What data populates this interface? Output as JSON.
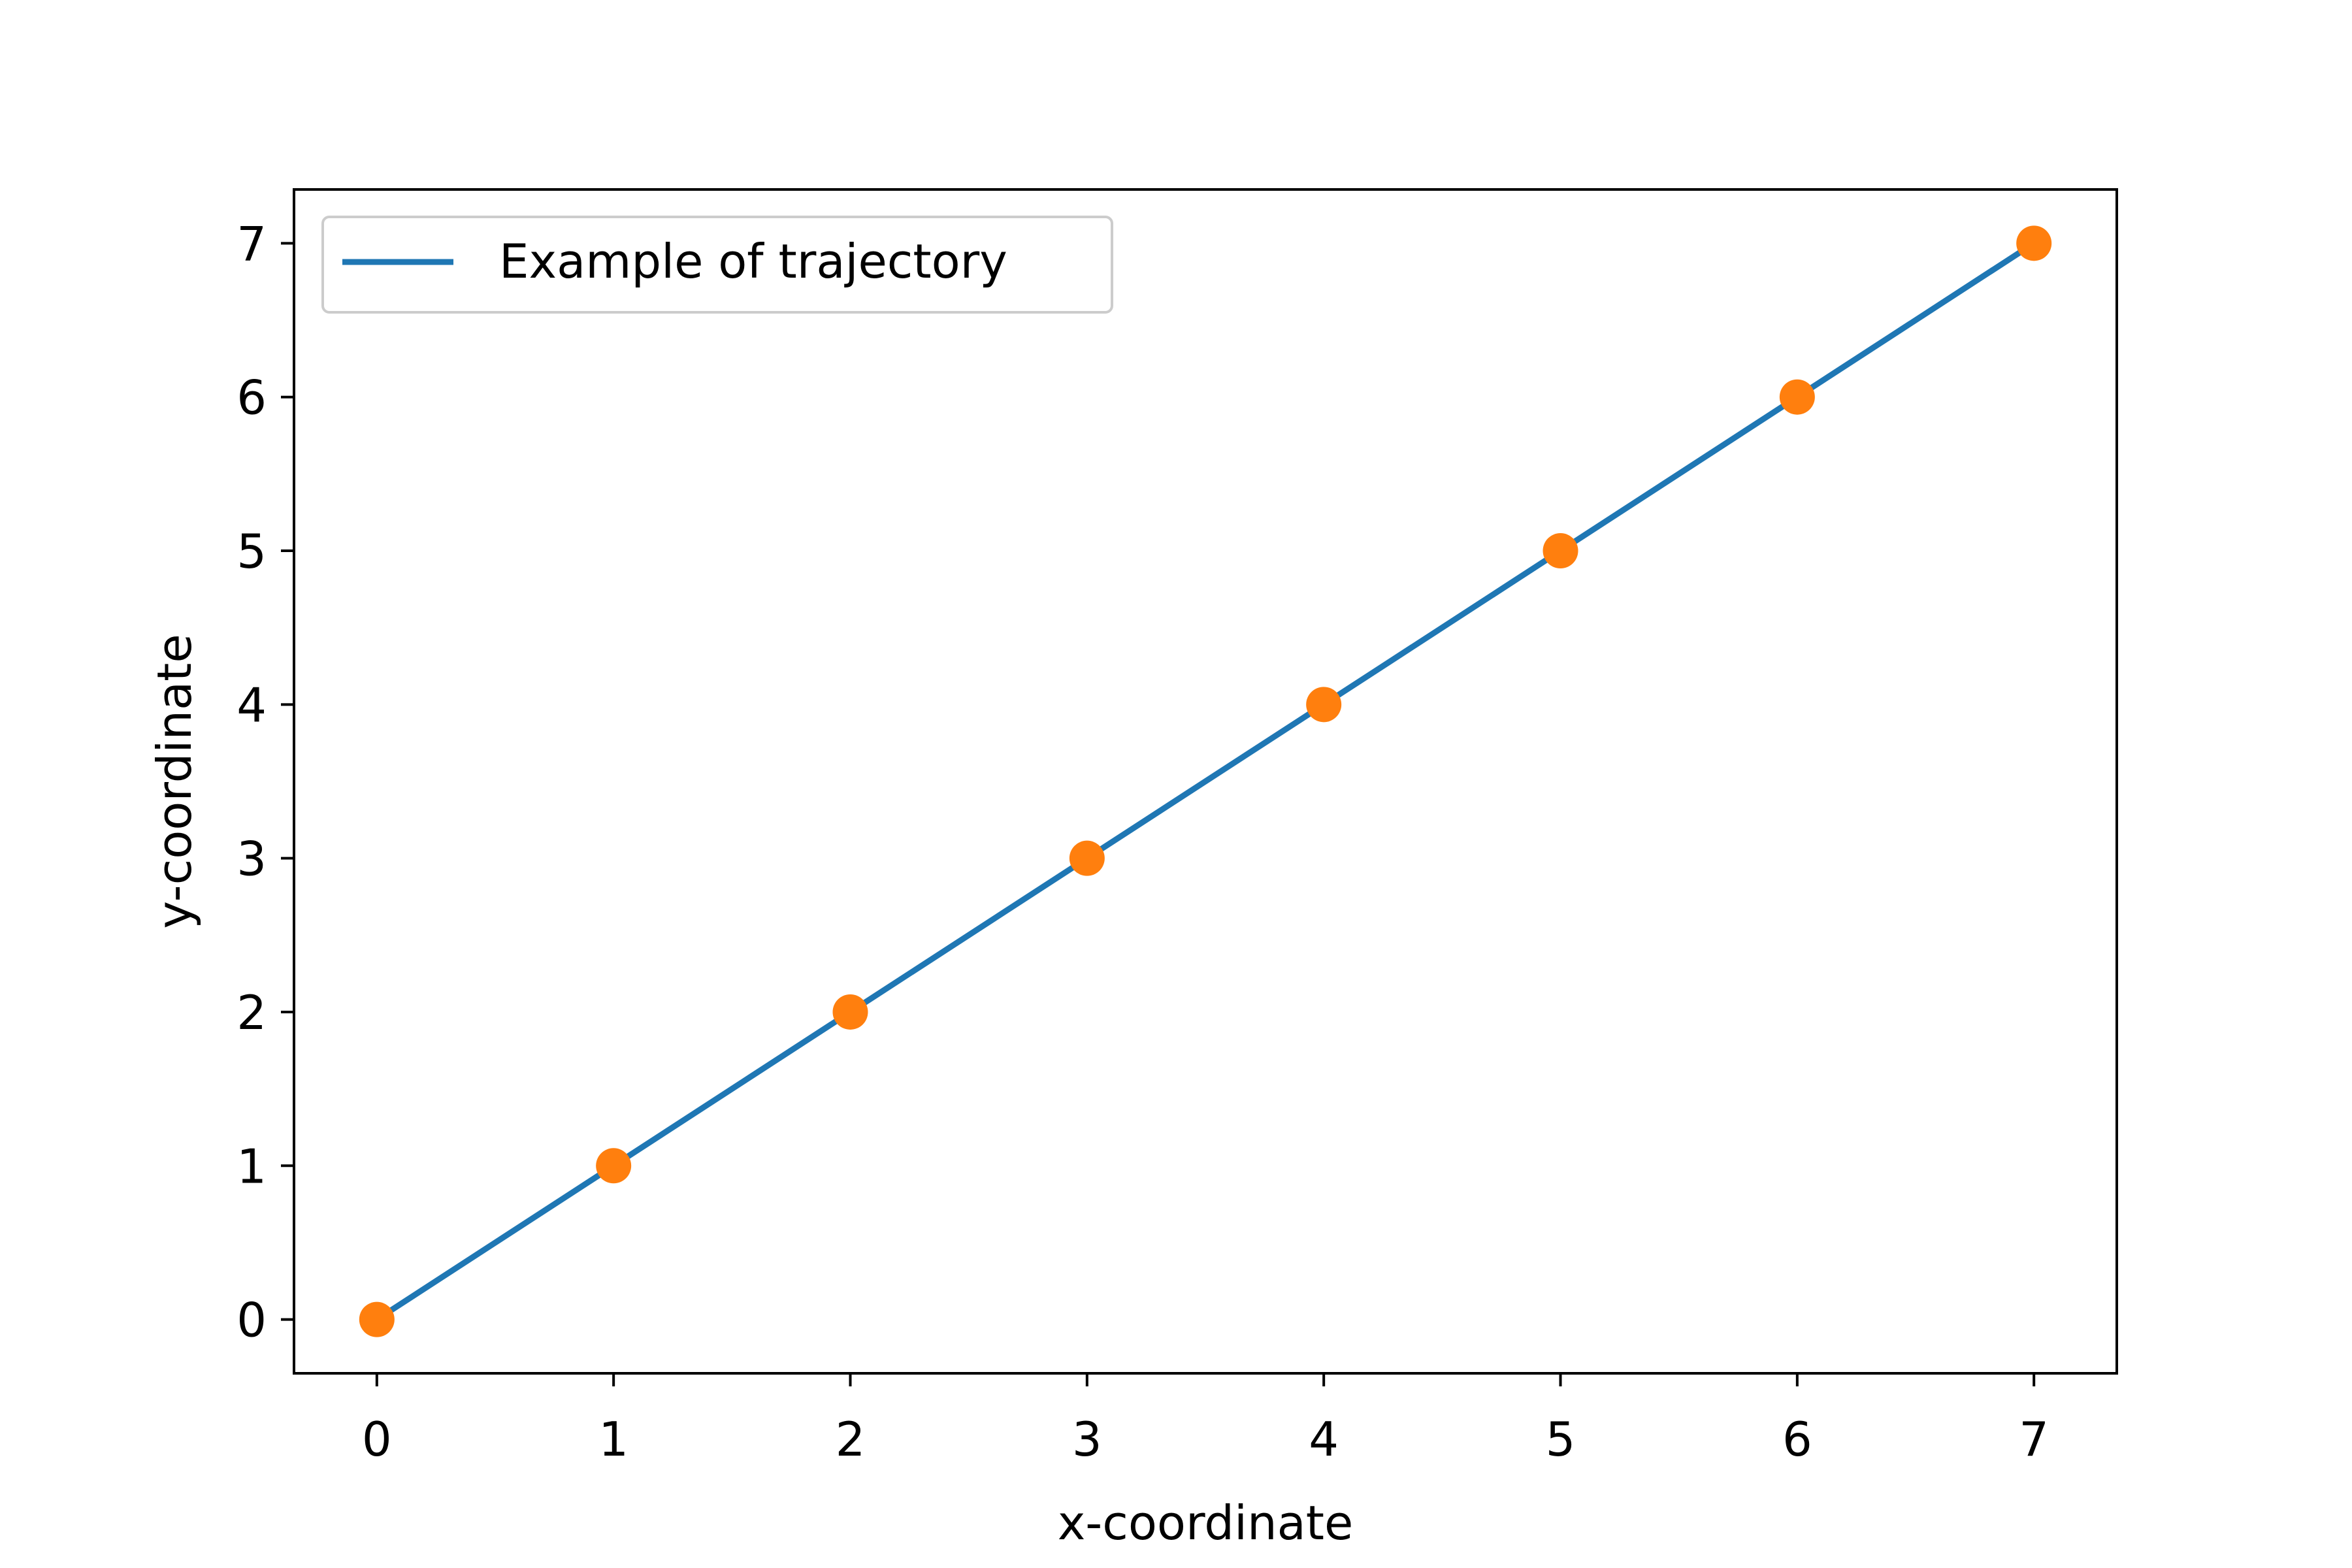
{
  "chart_data": {
    "type": "line",
    "title": "",
    "xlabel": "x-coordinate",
    "ylabel": "y-coordinate",
    "xlim": [
      -0.35,
      7.35
    ],
    "ylim": [
      -0.35,
      7.35
    ],
    "xticks": [
      0,
      1,
      2,
      3,
      4,
      5,
      6,
      7
    ],
    "yticks": [
      0,
      1,
      2,
      3,
      4,
      5,
      6,
      7
    ],
    "grid": false,
    "legend_position": "upper-left",
    "series": [
      {
        "name": "Example of trajectory",
        "type": "line",
        "color": "#1f77b4",
        "x": [
          0,
          1,
          2,
          3,
          4,
          5,
          6,
          7
        ],
        "y": [
          0,
          1,
          2,
          3,
          4,
          5,
          6,
          7
        ],
        "in_legend": true
      },
      {
        "type": "scatter",
        "color": "#ff7f0e",
        "x": [
          0,
          1,
          2,
          3,
          4,
          5,
          6,
          7
        ],
        "y": [
          0,
          1,
          2,
          3,
          4,
          5,
          6,
          7
        ],
        "in_legend": false
      }
    ]
  }
}
